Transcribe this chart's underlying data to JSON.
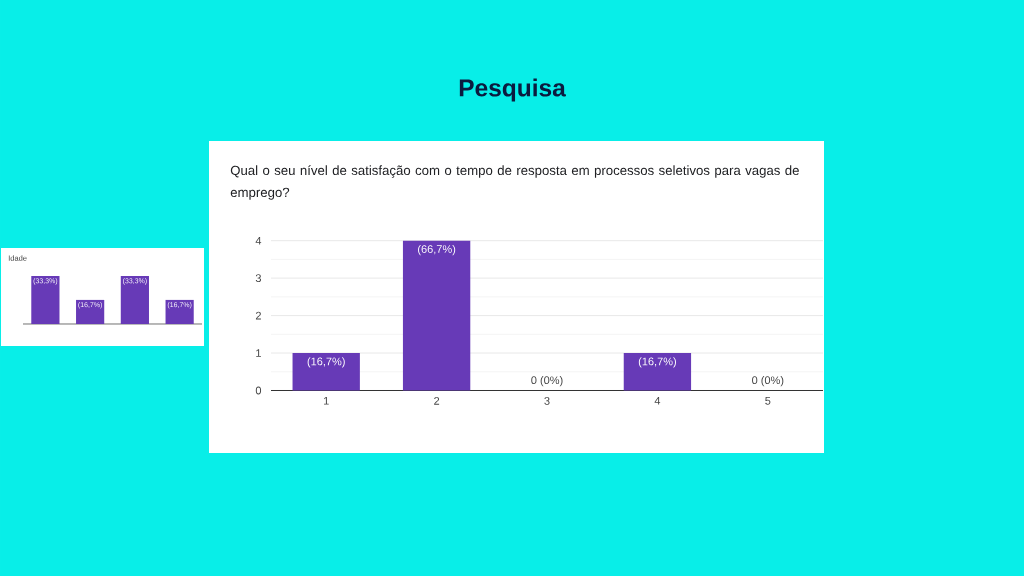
{
  "chart_data": [
    {
      "type": "bar",
      "title": "Pesquisa",
      "subtitle": "Qual o seu nível de satisfação com o tempo de resposta em processos seletivos para vagas de emprego?",
      "categories": [
        "1",
        "2",
        "3",
        "4",
        "5"
      ],
      "values": [
        1,
        4,
        0,
        1,
        0
      ],
      "color": "#673ab7",
      "ylim": [
        0,
        4
      ],
      "yticks": [
        0,
        1,
        2,
        3,
        4
      ],
      "grid": true,
      "annotations": [
        {
          "text": "(16,7%)",
          "x": "1",
          "y": 1
        },
        {
          "text": "(66,7%)",
          "x": "2",
          "y": 4
        },
        {
          "text": "0 (0%)",
          "x": "3",
          "y": 0
        },
        {
          "text": "(16,7%)",
          "x": "4",
          "y": 1
        },
        {
          "text": "0 (0%)",
          "x": "5",
          "y": 0
        }
      ]
    },
    {
      "type": "bar",
      "title": "Idade",
      "categories": [
        null,
        null,
        null,
        null
      ],
      "values": [
        33.3,
        16.7,
        33.3,
        16.7
      ],
      "color": "#673ab7",
      "value_labels": [
        "(33,3%)",
        "(16,7%)",
        "(33,3%)",
        "(16,7%)"
      ]
    }
  ]
}
